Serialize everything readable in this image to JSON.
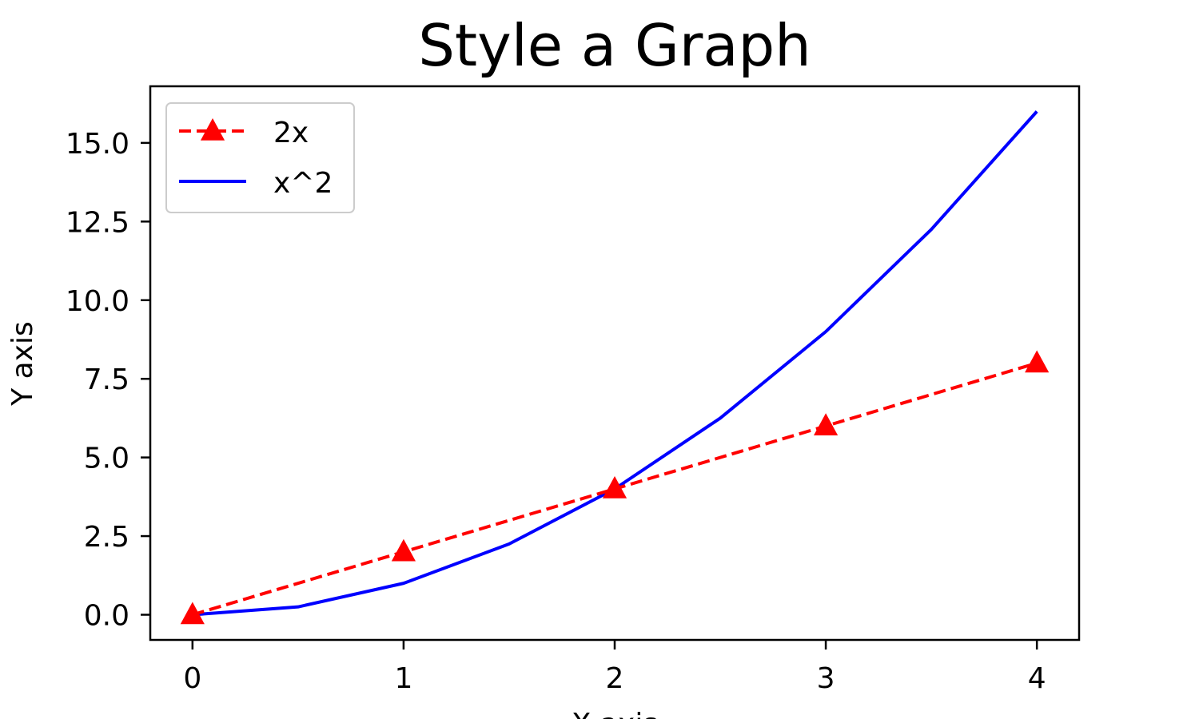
{
  "chart_data": {
    "type": "line",
    "title": "Style a Graph",
    "xlabel": "X axis",
    "ylabel": "Y axis",
    "xlim": [
      -0.2,
      4.2
    ],
    "ylim": [
      -0.8,
      16.8
    ],
    "xticks": [
      0,
      1,
      2,
      3,
      4
    ],
    "xtick_labels": [
      "0",
      "1",
      "2",
      "3",
      "4"
    ],
    "yticks": [
      0,
      2.5,
      5,
      7.5,
      10,
      12.5,
      15
    ],
    "ytick_labels": [
      "0.0",
      "2.5",
      "5.0",
      "7.5",
      "10.0",
      "12.5",
      "15.0"
    ],
    "grid": false,
    "legend_position": "upper-left",
    "series": [
      {
        "name": "2x",
        "color": "#ff0000",
        "line_style": "dashed",
        "marker": "triangle-up",
        "x": [
          0,
          1,
          2,
          3,
          4
        ],
        "y": [
          0,
          2,
          4,
          6,
          8
        ]
      },
      {
        "name": "x^2",
        "color": "#0000ff",
        "line_style": "solid",
        "marker": "none",
        "x": [
          0,
          0.5,
          1,
          1.5,
          2,
          2.5,
          3,
          3.5,
          4
        ],
        "y": [
          0,
          0.25,
          1,
          2.25,
          4,
          6.25,
          9,
          12.25,
          16
        ]
      }
    ]
  }
}
